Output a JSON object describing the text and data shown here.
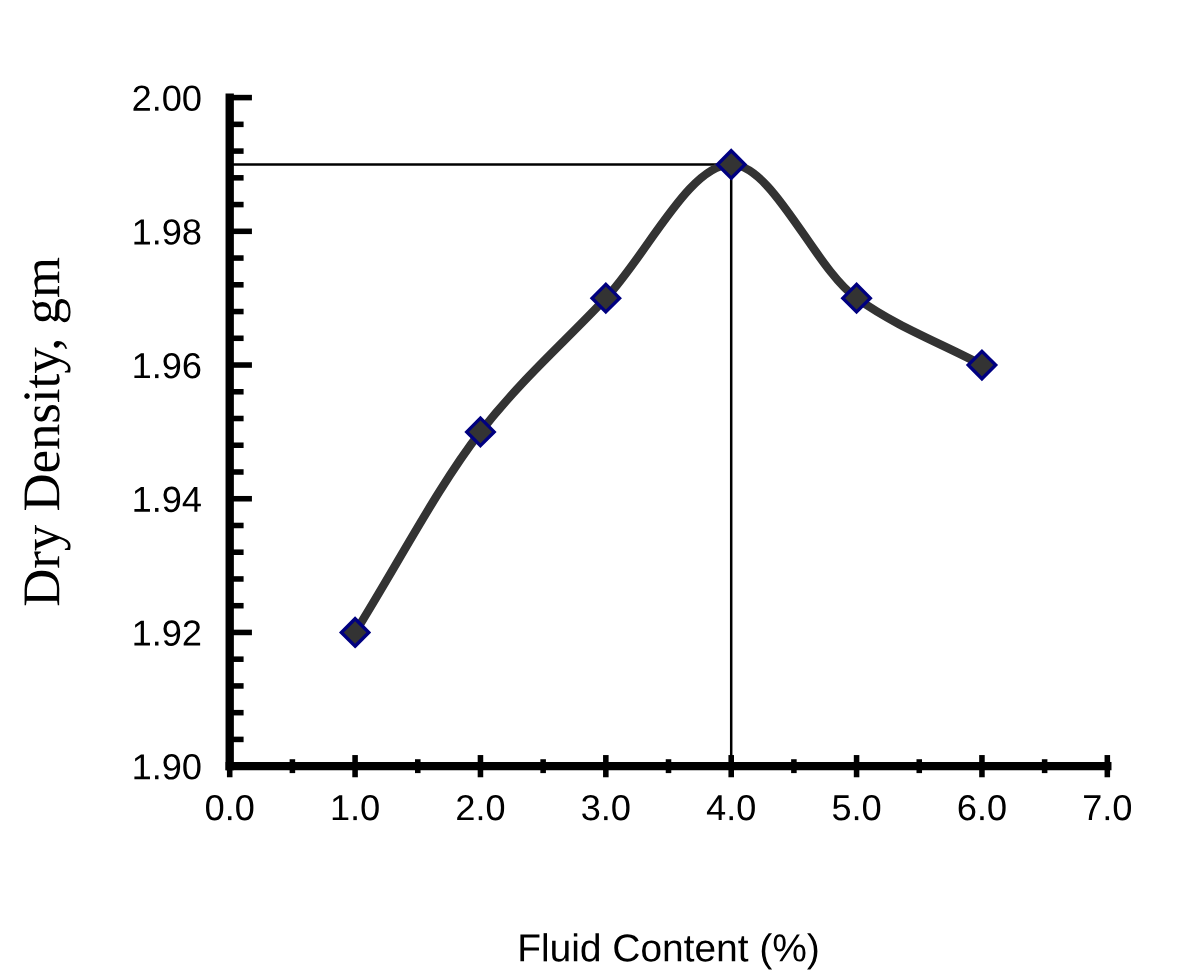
{
  "chart_data": {
    "type": "line",
    "xlabel": "Fluid Content (%)",
    "ylabel": "Dry Density, gm",
    "x": [
      1,
      2,
      3,
      4,
      5,
      6
    ],
    "series": [
      {
        "color": "#333333",
        "values": [
          1.92,
          1.95,
          1.97,
          1.99,
          1.97,
          1.96
        ]
      }
    ],
    "marker": "diamond",
    "grid": false,
    "xlim": [
      0,
      7
    ],
    "ylim": [
      1.9,
      2.0
    ],
    "xticks": [
      {
        "value": 0,
        "label": "0.0"
      },
      {
        "value": 1,
        "label": "1.0"
      },
      {
        "value": 2,
        "label": "2.0"
      },
      {
        "value": 3,
        "label": "3.0"
      },
      {
        "value": 4,
        "label": "4.0"
      },
      {
        "value": 5,
        "label": "5.0"
      },
      {
        "value": 6,
        "label": "6.0"
      },
      {
        "value": 7,
        "label": "7.0"
      }
    ],
    "yticks": [
      {
        "value": 1.9,
        "label": "1.90"
      },
      {
        "value": 1.92,
        "label": "1.92"
      },
      {
        "value": 1.94,
        "label": "1.94"
      },
      {
        "value": 1.96,
        "label": "1.96"
      },
      {
        "value": 1.98,
        "label": "1.98"
      },
      {
        "value": 2.0,
        "label": "2.00"
      }
    ],
    "ref_lines": [
      {
        "axis": "y",
        "value": 1.99,
        "color": "#000000"
      },
      {
        "axis": "x",
        "value": 4,
        "color": "#000000"
      }
    ]
  }
}
